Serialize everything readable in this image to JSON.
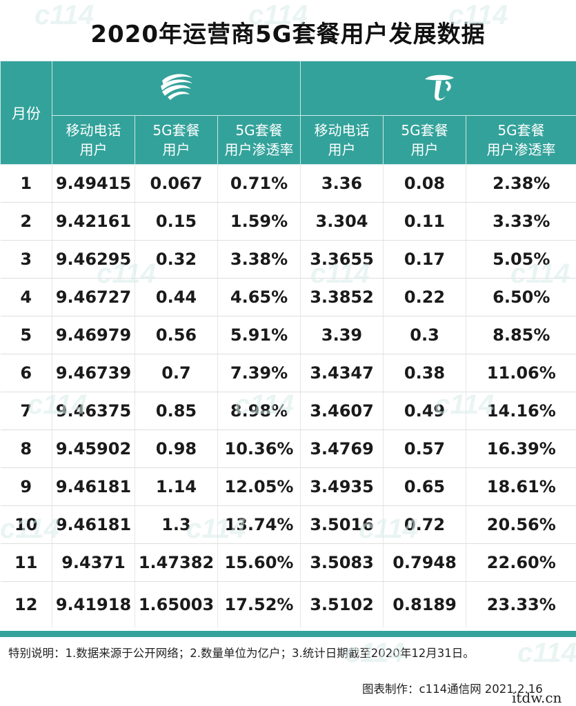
{
  "title": "2020年运营商5G套餐用户发展数据",
  "header": {
    "month_label": "月份",
    "operators": [
      {
        "logo": "china-mobile-logo",
        "columns": [
          "移动电话\n用户",
          "5G套餐\n用户",
          "5G套餐\n用户渗透率"
        ]
      },
      {
        "logo": "china-telecom-logo",
        "columns": [
          "移动电话\n用户",
          "5G套餐\n用户",
          "5G套餐\n用户渗透率"
        ]
      }
    ]
  },
  "rows": [
    [
      "1",
      "9.49415",
      "0.067",
      "0.71%",
      "3.36",
      "0.08",
      "2.38%"
    ],
    [
      "2",
      "9.42161",
      "0.15",
      "1.59%",
      "3.304",
      "0.11",
      "3.33%"
    ],
    [
      "3",
      "9.46295",
      "0.32",
      "3.38%",
      "3.3655",
      "0.17",
      "5.05%"
    ],
    [
      "4",
      "9.46727",
      "0.44",
      "4.65%",
      "3.3852",
      "0.22",
      "6.50%"
    ],
    [
      "5",
      "9.46979",
      "0.56",
      "5.91%",
      "3.39",
      "0.3",
      "8.85%"
    ],
    [
      "6",
      "9.46739",
      "0.7",
      "7.39%",
      "3.4347",
      "0.38",
      "11.06%"
    ],
    [
      "7",
      "9.46375",
      "0.85",
      "8.98%",
      "3.4607",
      "0.49",
      "14.16%"
    ],
    [
      "8",
      "9.45902",
      "0.98",
      "10.36%",
      "3.4769",
      "0.57",
      "16.39%"
    ],
    [
      "9",
      "9.46181",
      "1.14",
      "12.05%",
      "3.4935",
      "0.65",
      "18.61%"
    ],
    [
      "10",
      "9.46181",
      "1.3",
      "13.74%",
      "3.5016",
      "0.72",
      "20.56%"
    ],
    [
      "11",
      "9.4371",
      "1.47382",
      "15.60%",
      "3.5083",
      "0.7948",
      "22.60%"
    ],
    [
      "12",
      "9.41918",
      "1.65003",
      "17.52%",
      "3.5102",
      "0.8189",
      "23.33%"
    ]
  ],
  "note": "特别说明：1.数据来源于公开网络；2.数量单位为亿户；3.统计日期截至2020年12月31日。",
  "credit": "图表制作：c114通信网 2021.2.16",
  "corner_text": "itdw.cn",
  "colors": {
    "header_bg": "#33a29a",
    "header_text": "#ffffff",
    "watermark": "#d8ecea"
  },
  "chart_data": {
    "type": "table",
    "title": "2020年运营商5G套餐用户发展数据",
    "columns": [
      "月份",
      "移动电话用户",
      "5G套餐用户",
      "5G套餐用户渗透率",
      "移动电话用户",
      "5G套餐用户",
      "5G套餐用户渗透率"
    ],
    "rows": [
      [
        "1",
        "9.49415",
        "0.067",
        "0.71%",
        "3.36",
        "0.08",
        "2.38%"
      ],
      [
        "2",
        "9.42161",
        "0.15",
        "1.59%",
        "3.304",
        "0.11",
        "3.33%"
      ],
      [
        "3",
        "9.46295",
        "0.32",
        "3.38%",
        "3.3655",
        "0.17",
        "5.05%"
      ],
      [
        "4",
        "9.46727",
        "0.44",
        "4.65%",
        "3.3852",
        "0.22",
        "6.50%"
      ],
      [
        "5",
        "9.46979",
        "0.56",
        "5.91%",
        "3.39",
        "0.3",
        "8.85%"
      ],
      [
        "6",
        "9.46739",
        "0.7",
        "7.39%",
        "3.4347",
        "0.38",
        "11.06%"
      ],
      [
        "7",
        "9.46375",
        "0.85",
        "8.98%",
        "3.4607",
        "0.49",
        "14.16%"
      ],
      [
        "8",
        "9.45902",
        "0.98",
        "10.36%",
        "3.4769",
        "0.57",
        "16.39%"
      ],
      [
        "9",
        "9.46181",
        "1.14",
        "12.05%",
        "3.4935",
        "0.65",
        "18.61%"
      ],
      [
        "10",
        "9.46181",
        "1.3",
        "13.74%",
        "3.5016",
        "0.72",
        "20.56%"
      ],
      [
        "11",
        "9.4371",
        "1.47382",
        "15.60%",
        "3.5083",
        "0.7948",
        "22.60%"
      ],
      [
        "12",
        "9.41918",
        "1.65003",
        "17.52%",
        "3.5102",
        "0.8189",
        "23.33%"
      ]
    ]
  }
}
